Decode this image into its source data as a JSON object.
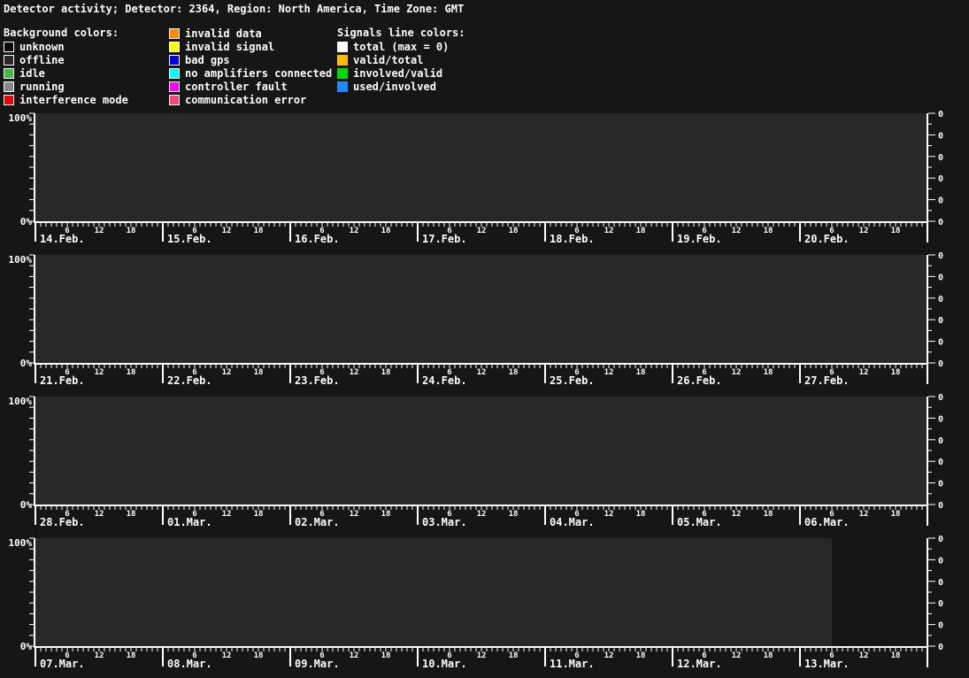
{
  "header": {
    "title": "Detector activity; Detector: 2364, Region: North America, Time Zone: GMT"
  },
  "legend": {
    "background_title": "Background colors:",
    "background_items": [
      {
        "name": "unknown",
        "label": "unknown",
        "color": "#0a0a0a"
      },
      {
        "name": "offline",
        "label": "offline",
        "color": "#282828"
      },
      {
        "name": "idle",
        "label": "idle",
        "color": "#44bb44"
      },
      {
        "name": "running",
        "label": "running",
        "color": "#888888"
      },
      {
        "name": "interference-mode",
        "label": "interference mode",
        "color": "#ee0000"
      }
    ],
    "status_items": [
      {
        "name": "invalid-data",
        "label": "invalid data",
        "color": "#ff8800"
      },
      {
        "name": "invalid-signal",
        "label": "invalid signal",
        "color": "#ffff00"
      },
      {
        "name": "bad-gps",
        "label": "bad gps",
        "color": "#0000ee"
      },
      {
        "name": "no-amplifiers-connected",
        "label": "no amplifiers connected",
        "color": "#00ffff"
      },
      {
        "name": "controller-fault",
        "label": "controller fault",
        "color": "#ff00ff"
      },
      {
        "name": "communication-error",
        "label": "communication error",
        "color": "#ff4477"
      }
    ],
    "signals_title": "Signals line colors:",
    "signal_items": [
      {
        "name": "total",
        "label": "total (max = 0)",
        "color": "#ffffff"
      },
      {
        "name": "valid-total",
        "label": "valid/total",
        "color": "#ffbb00"
      },
      {
        "name": "involved-valid",
        "label": "involved/valid",
        "color": "#00dd00"
      },
      {
        "name": "used-involved",
        "label": "used/involved",
        "color": "#2288ff"
      }
    ]
  },
  "chart_data": {
    "type": "area",
    "title": "Detector activity",
    "detector": "2364",
    "region": "North America",
    "timezone": "GMT",
    "y_axis_left": {
      "max_label": "100%",
      "min_label": "0%",
      "range_percent": [
        0,
        100
      ],
      "tick_every_percent": 10
    },
    "y_axis_right": {
      "tick_labels": [
        "0",
        "0",
        "0",
        "0",
        "0",
        "0"
      ],
      "tick_every_percent": 20,
      "max_value": 0
    },
    "x_hour_labels": [
      {
        "hour": 6,
        "label": "6"
      },
      {
        "hour": 12,
        "label": "12"
      },
      {
        "hour": 18,
        "label": "18"
      }
    ],
    "rows": [
      {
        "dates": [
          "14.Feb.",
          "15.Feb.",
          "16.Feb.",
          "17.Feb.",
          "18.Feb.",
          "19.Feb.",
          "20.Feb."
        ],
        "background_state": "offline",
        "background_color": "#282828",
        "covered_hours": 168
      },
      {
        "dates": [
          "21.Feb.",
          "22.Feb.",
          "23.Feb.",
          "24.Feb.",
          "25.Feb.",
          "26.Feb.",
          "27.Feb."
        ],
        "background_state": "offline",
        "background_color": "#282828",
        "covered_hours": 168
      },
      {
        "dates": [
          "28.Feb.",
          "01.Mar.",
          "02.Mar.",
          "03.Mar.",
          "04.Mar.",
          "05.Mar.",
          "06.Mar."
        ],
        "background_state": "offline",
        "background_color": "#282828",
        "covered_hours": 168
      },
      {
        "dates": [
          "07.Mar.",
          "08.Mar.",
          "09.Mar.",
          "10.Mar.",
          "11.Mar.",
          "12.Mar.",
          "13.Mar."
        ],
        "background_state": "offline",
        "background_color": "#282828",
        "covered_hours": 150
      }
    ],
    "series": [],
    "axis_color": "#ffffff",
    "page_background": "#161616"
  }
}
